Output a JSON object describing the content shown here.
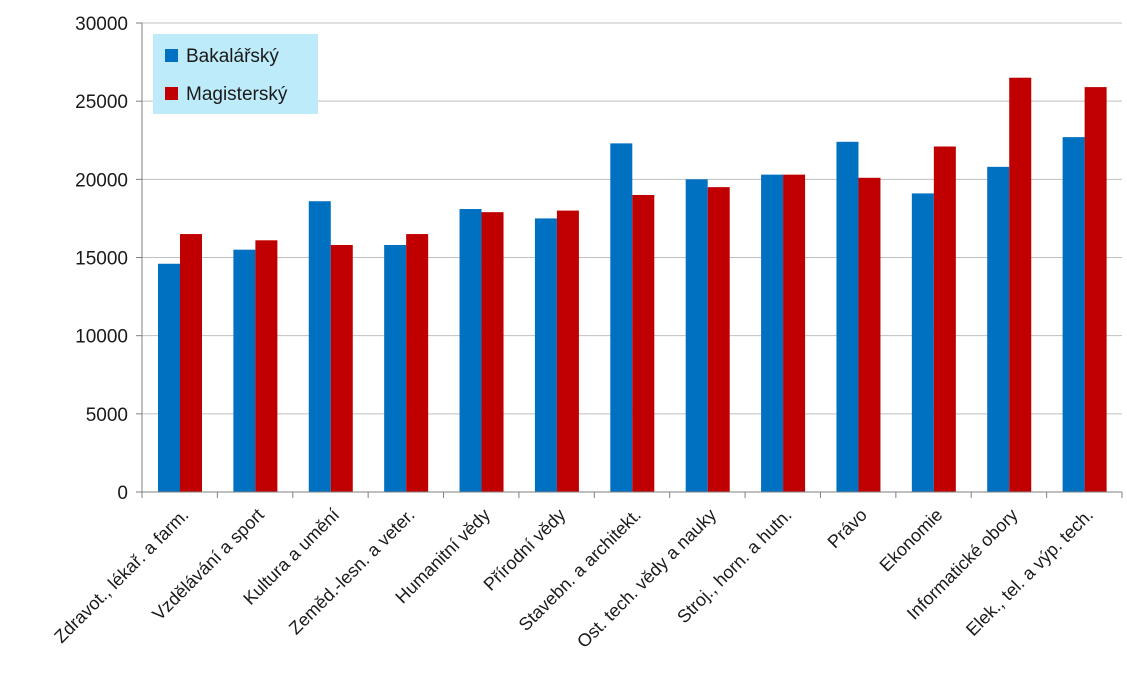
{
  "chart_data": {
    "type": "bar",
    "categories": [
      "Zdravot., lékař. a farm.",
      "Vzdělávání a sport",
      "Kultura a umění",
      "Zeměd.-lesn. a veter.",
      "Humanitní vědy",
      "Přírodní vědy",
      "Stavebn. a architekt.",
      "Ost. tech. vědy a nauky",
      "Stroj., horn. a hutn.",
      "Právo",
      "Ekonomie",
      "Informatické obory",
      "Elek., tel. a výp. tech."
    ],
    "series": [
      {
        "name": "Bakalářský",
        "color": "#0070C0",
        "values": [
          14600,
          15500,
          18600,
          15800,
          18100,
          17500,
          22300,
          20000,
          20300,
          22400,
          19100,
          20800,
          22700
        ]
      },
      {
        "name": "Magisterský",
        "color": "#C00000",
        "values": [
          16500,
          16100,
          15800,
          16500,
          17900,
          18000,
          19000,
          19500,
          20300,
          20100,
          22100,
          26500,
          25900
        ]
      }
    ],
    "title": "",
    "xlabel": "",
    "ylabel": "",
    "ylim": [
      0,
      30000
    ],
    "yticks": [
      0,
      5000,
      10000,
      15000,
      20000,
      25000,
      30000
    ],
    "grid": true,
    "legend": {
      "placement": "top-left",
      "background": "#BDEBFA"
    }
  }
}
